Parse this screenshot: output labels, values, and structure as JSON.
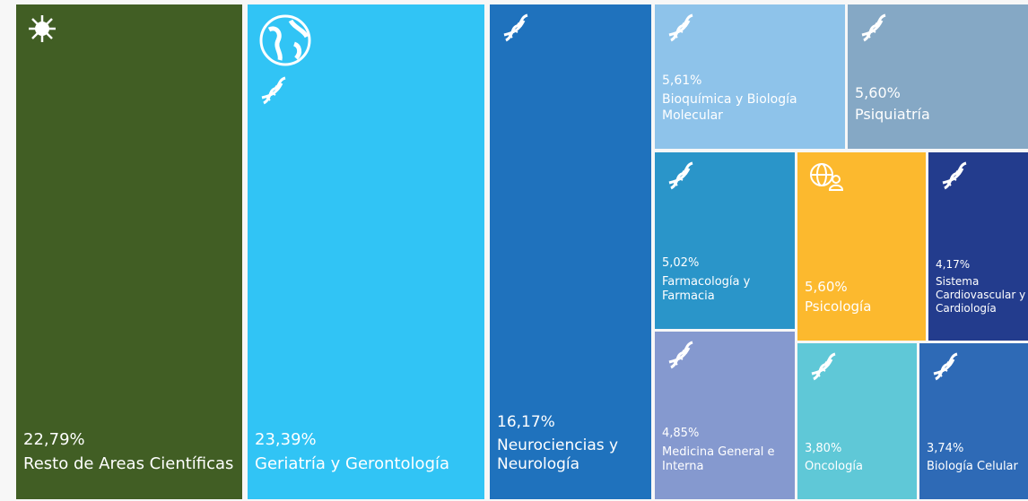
{
  "chart_data": {
    "type": "treemap",
    "categories": [
      "Resto de Areas Científicas",
      "Geriatría y Gerontología",
      "Neurociencias y Neurología",
      "Bioquímica y Biología Molecular",
      "Psiquiatría",
      "Farmacología y Farmacia",
      "Psicología",
      "Sistema Cardiovascular y Cardiología",
      "Medicina General e Interna",
      "Oncología",
      "Biología Celular"
    ],
    "values": [
      22.79,
      23.39,
      16.17,
      5.61,
      5.6,
      5.02,
      5.6,
      4.17,
      4.85,
      3.8,
      3.74
    ],
    "value_labels": [
      "22,79%",
      "23,39%",
      "16,17%",
      "5,61%",
      "5,60%",
      "5,02%",
      "5,60%",
      "4,17%",
      "4,85%",
      "3,80%",
      "3,74%"
    ],
    "colors": [
      "#415e24",
      "#31c4f5",
      "#1f72bd",
      "#8ec3ea",
      "#85a8c5",
      "#2a95c9",
      "#fcb92e",
      "#233c8d",
      "#8599cf",
      "#5fc8d7",
      "#2e6ab6"
    ]
  }
}
